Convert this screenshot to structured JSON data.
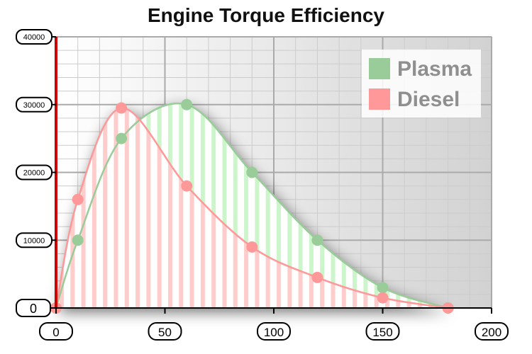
{
  "chart_data": {
    "type": "area",
    "title": "Engine Torque Efficiency",
    "xlabel": "",
    "ylabel": "",
    "xlim": [
      0,
      200
    ],
    "ylim": [
      0,
      40000
    ],
    "x_ticks": [
      0,
      50,
      100,
      150,
      200
    ],
    "y_ticks": [
      0,
      10000,
      20000,
      30000,
      40000
    ],
    "grid": true,
    "legend_position": "top-right",
    "series": [
      {
        "name": "Plasma",
        "color": "#99cc99",
        "fill": "#ccf5cc",
        "points": [
          [
            0,
            0
          ],
          [
            10,
            10000
          ],
          [
            30,
            25000
          ],
          [
            60,
            30000
          ],
          [
            90,
            20000
          ],
          [
            120,
            10000
          ],
          [
            150,
            3000
          ],
          [
            180,
            0
          ]
        ]
      },
      {
        "name": "Diesel",
        "color": "#ff9999",
        "fill": "#ffcccc",
        "points": [
          [
            0,
            0
          ],
          [
            10,
            16000
          ],
          [
            30,
            29500
          ],
          [
            60,
            18000
          ],
          [
            90,
            9000
          ],
          [
            120,
            4500
          ],
          [
            150,
            1500
          ],
          [
            180,
            0
          ]
        ]
      }
    ]
  }
}
